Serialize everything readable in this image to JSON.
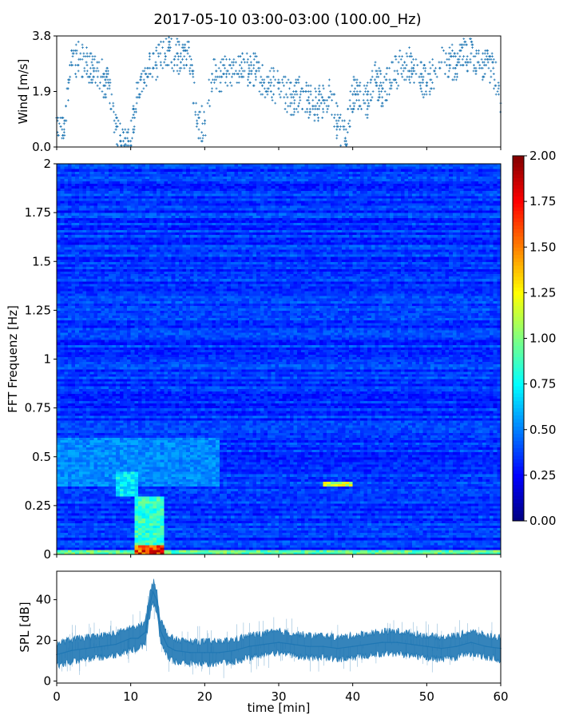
{
  "figure": {
    "title": "2017-05-10 03:00-03:00 (100.00_Hz)"
  },
  "colors": {
    "series": "#1f77b4",
    "frame": "#000000",
    "background": "#ffffff",
    "colormap": "jet"
  },
  "chart_data": [
    {
      "id": "wind",
      "type": "scatter",
      "title": "",
      "xlabel": "",
      "ylabel": "Wind [m/s]",
      "xlim": [
        0,
        60
      ],
      "ylim": [
        0,
        3.8
      ],
      "xticks": [
        0,
        10,
        20,
        30,
        40,
        50,
        60
      ],
      "xtick_labels_visible": false,
      "yticks": [
        0.0,
        1.9,
        3.8
      ],
      "ytick_labels": [
        "0.0",
        "1.9",
        "3.8"
      ],
      "marker": "+",
      "series": [
        {
          "x": [
            0,
            1,
            2,
            3,
            4,
            5,
            6,
            7,
            8,
            9,
            10,
            11,
            12,
            13,
            14,
            15,
            16,
            17,
            18,
            19,
            20,
            21,
            22,
            23,
            24,
            25,
            26,
            27,
            28,
            29,
            30,
            31,
            32,
            33,
            34,
            35,
            36,
            37,
            38,
            39,
            40,
            41,
            42,
            43,
            44,
            45,
            46,
            47,
            48,
            49,
            50,
            51,
            52,
            53,
            54,
            55,
            56,
            57,
            58,
            59,
            60
          ],
          "y": [
            1.0,
            0.8,
            2.8,
            3.0,
            2.9,
            2.6,
            2.4,
            2.2,
            0.6,
            0.2,
            0.2,
            2.2,
            2.5,
            2.7,
            3.2,
            3.3,
            3.1,
            3.0,
            3.1,
            0.8,
            0.8,
            2.5,
            2.4,
            2.6,
            2.5,
            2.7,
            2.7,
            2.6,
            2.2,
            2.2,
            2.0,
            1.8,
            1.7,
            1.9,
            1.6,
            1.4,
            1.6,
            1.9,
            0.7,
            0.3,
            1.8,
            1.9,
            1.6,
            2.3,
            2.0,
            2.3,
            2.6,
            2.9,
            2.7,
            2.4,
            2.2,
            2.6,
            2.9,
            3.0,
            2.8,
            3.1,
            3.2,
            2.9,
            2.8,
            2.7,
            1.5
          ]
        }
      ]
    },
    {
      "id": "spectrogram",
      "type": "heatmap",
      "title": "",
      "xlabel": "",
      "ylabel": "FFT Frequenz [Hz]",
      "xlim": [
        0,
        60
      ],
      "ylim": [
        0,
        2
      ],
      "yticks": [
        0,
        0.25,
        0.5,
        0.75,
        1,
        1.25,
        1.5,
        1.75,
        2
      ],
      "ytick_labels": [
        "0",
        "0.25",
        "0.5",
        "0.75",
        "1",
        "1.25",
        "1.5",
        "1.75",
        "2"
      ],
      "xticks": [
        0,
        10,
        20,
        30,
        40,
        50,
        60
      ],
      "xtick_labels_visible": false,
      "value_range": [
        0,
        2
      ],
      "base_level": 0.28,
      "features": [
        {
          "x": [
            10.5,
            14.5
          ],
          "y": [
            0.0,
            0.3
          ],
          "level": 0.9
        },
        {
          "x": [
            10.5,
            14.5
          ],
          "y": [
            0.0,
            0.05
          ],
          "level": 1.9
        },
        {
          "x": [
            8.0,
            11.0
          ],
          "y": [
            0.3,
            0.42
          ],
          "level": 0.75
        },
        {
          "x": [
            0.0,
            60.0
          ],
          "y": [
            0.0,
            0.02
          ],
          "level": 1.0
        },
        {
          "x": [
            36.0,
            40.0
          ],
          "y": [
            0.35,
            0.38
          ],
          "level": 1.3
        },
        {
          "x": [
            0.0,
            22.0
          ],
          "y": [
            0.35,
            0.6
          ],
          "level": 0.5
        }
      ],
      "colorbar": {
        "range": [
          0,
          2
        ],
        "ticks": [
          0.0,
          0.25,
          0.5,
          0.75,
          1.0,
          1.25,
          1.5,
          1.75,
          2.0
        ],
        "tick_labels": [
          "0.00",
          "0.25",
          "0.50",
          "0.75",
          "1.00",
          "1.25",
          "1.50",
          "1.75",
          "2.00"
        ]
      }
    },
    {
      "id": "spl",
      "type": "line",
      "title": "",
      "xlabel": "time [min]",
      "ylabel": "SPL [dB]",
      "xlim": [
        0,
        60
      ],
      "ylim": [
        -1,
        54
      ],
      "xticks": [
        0,
        10,
        20,
        30,
        40,
        50,
        60
      ],
      "xtick_labels": [
        "0",
        "10",
        "20",
        "30",
        "40",
        "50",
        "60"
      ],
      "yticks": [
        0,
        20,
        40
      ],
      "ytick_labels": [
        "0",
        "20",
        "40"
      ],
      "series": [
        {
          "x": [
            0,
            2,
            4,
            6,
            8,
            10,
            11,
            12,
            12.5,
            13,
            13.5,
            14,
            15,
            16,
            18,
            20,
            22,
            24,
            26,
            28,
            30,
            32,
            34,
            36,
            38,
            40,
            42,
            44,
            46,
            48,
            50,
            52,
            54,
            56,
            58,
            60
          ],
          "y": [
            13,
            15,
            16,
            17,
            18,
            21,
            21,
            24,
            36,
            44,
            40,
            25,
            17,
            15,
            14,
            14,
            14,
            15,
            17,
            18,
            19,
            18,
            17,
            17,
            16,
            17,
            18,
            19,
            19,
            18,
            17,
            16,
            17,
            19,
            17,
            16
          ],
          "band": [
            6,
            6,
            6,
            6,
            6,
            6,
            6,
            6,
            6,
            6,
            6,
            6,
            6,
            6,
            6,
            6,
            6,
            6,
            6,
            6,
            6,
            6,
            6,
            6,
            6,
            6,
            6,
            6,
            6,
            6,
            6,
            6,
            6,
            6,
            6,
            6
          ]
        }
      ]
    }
  ]
}
